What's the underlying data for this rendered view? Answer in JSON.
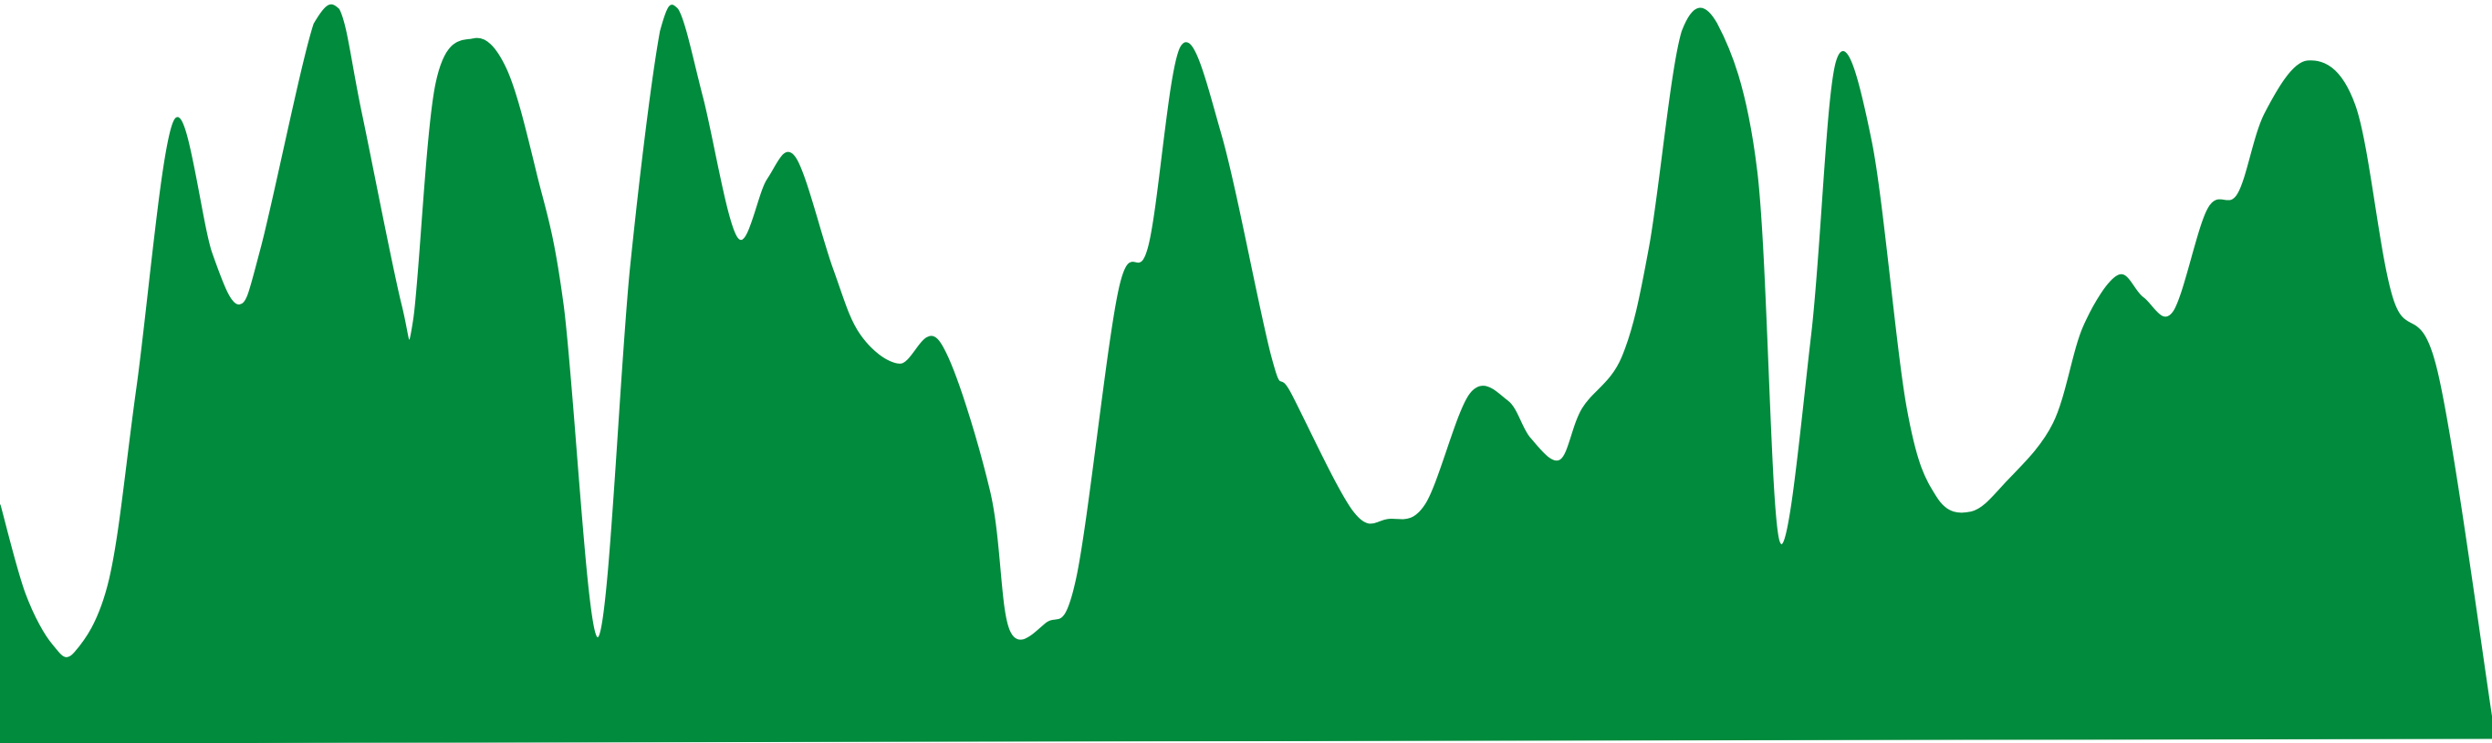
{
  "chart_data": {
    "type": "area",
    "title": "",
    "xlabel": "",
    "ylabel": "",
    "grid": false,
    "legend": "none",
    "color": "#008b3d",
    "xlim": [
      0,
      100
    ],
    "ylim": [
      0,
      100
    ],
    "series": [
      {
        "x": [
          0,
          1.0,
          2.1,
          3.0,
          4.4,
          5.5,
          7.0,
          8.5,
          9.6,
          10.5,
          12.6,
          13.6,
          14.5,
          16.1,
          16.6,
          17.5,
          19.0,
          20.3,
          21.5,
          22.6,
          24.0,
          25.3,
          26.5,
          27.2,
          28.2,
          29.6,
          30.8,
          31.9,
          33.4,
          34.5,
          36.1,
          37.7,
          39.7,
          40.5,
          42.0,
          43.2,
          44.9,
          46.1,
          47.4,
          49.0,
          51.0,
          51.8,
          54.3,
          55.7,
          57.2,
          59.0,
          60.5,
          61.4,
          62.6,
          63.5,
          65.1,
          66.2,
          67.5,
          68.9,
          70.5,
          71.4,
          72.7,
          73.7,
          75.1,
          76.5,
          77.7,
          79.1,
          80.5,
          82.4,
          83.6,
          85.0,
          86.0,
          87.2,
          88.6,
          89.8,
          90.9,
          92.6,
          94.5,
          96.0,
          97.8,
          100
        ],
        "values": [
          32,
          20,
          13,
          12,
          22,
          48,
          84,
          66,
          59,
          67,
          97,
          99,
          85,
          59,
          57,
          89,
          95,
          91,
          77,
          59,
          14,
          64,
          96,
          99,
          87,
          68,
          76,
          79,
          64,
          55,
          51,
          54,
          34,
          15,
          16,
          22,
          61,
          67,
          94,
          82,
          52,
          47,
          31,
          30,
          32,
          47,
          46,
          41,
          38,
          45,
          52,
          67,
          96,
          97,
          77,
          27,
          55,
          92,
          81,
          45,
          33,
          31,
          35,
          43,
          56,
          63,
          60,
          58,
          72,
          74,
          85,
          92,
          86,
          60,
          50,
          3
        ]
      }
    ]
  }
}
